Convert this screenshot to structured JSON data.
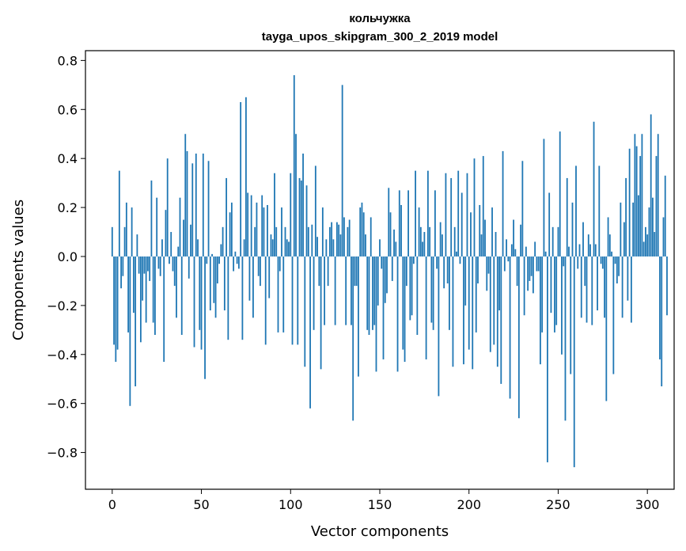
{
  "chart_data": {
    "type": "bar",
    "title": "кольчужка",
    "subtitle": "tayga_upos_skipgram_300_2_2019 model",
    "xlabel": "Vector components",
    "ylabel": "Components values",
    "xlim": [
      -15,
      315
    ],
    "ylim": [
      -0.95,
      0.84
    ],
    "xticks": [
      0,
      50,
      100,
      150,
      200,
      250,
      300
    ],
    "xtick_labels": [
      "0",
      "50",
      "100",
      "150",
      "200",
      "250",
      "300"
    ],
    "yticks": [
      -0.8,
      -0.6,
      -0.4,
      -0.2,
      0.0,
      0.2,
      0.4,
      0.6,
      0.8
    ],
    "ytick_labels": [
      "−0.8",
      "−0.6",
      "−0.4",
      "−0.2",
      "0.0",
      "0.2",
      "0.4",
      "0.6",
      "0.8"
    ],
    "grid": false,
    "bar_color": "#1f77b4",
    "series": [
      {
        "values": [
          0.12,
          -0.36,
          -0.43,
          -0.38,
          0.35,
          -0.13,
          -0.08,
          0.12,
          0.22,
          -0.31,
          -0.61,
          0.2,
          -0.23,
          -0.53,
          0.09,
          -0.07,
          -0.35,
          -0.18,
          -0.07,
          -0.27,
          -0.06,
          -0.1,
          0.31,
          -0.27,
          -0.32,
          0.24,
          -0.05,
          -0.08,
          0.07,
          -0.43,
          0.19,
          0.4,
          -0.03,
          0.1,
          -0.06,
          -0.12,
          -0.25,
          0.04,
          0.24,
          -0.32,
          0.15,
          0.5,
          0.43,
          -0.09,
          0.13,
          0.38,
          -0.37,
          0.42,
          0.07,
          -0.3,
          -0.38,
          0.42,
          -0.5,
          -0.03,
          0.39,
          -0.22,
          0.01,
          -0.19,
          -0.25,
          -0.11,
          -0.03,
          0.05,
          0.12,
          -0.22,
          0.32,
          -0.34,
          0.18,
          0.22,
          -0.06,
          0.02,
          -0.03,
          -0.05,
          0.63,
          -0.34,
          0.07,
          0.65,
          0.26,
          -0.18,
          0.25,
          -0.25,
          0.12,
          0.22,
          -0.08,
          -0.12,
          0.25,
          0.2,
          -0.36,
          0.21,
          -0.17,
          0.09,
          0.07,
          0.34,
          0.12,
          -0.31,
          -0.06,
          0.2,
          -0.31,
          0.12,
          0.07,
          0.06,
          0.34,
          -0.36,
          0.74,
          0.5,
          -0.36,
          0.32,
          0.31,
          0.42,
          -0.45,
          0.29,
          0.12,
          -0.62,
          0.13,
          -0.3,
          0.37,
          0.08,
          -0.12,
          -0.46,
          0.2,
          -0.28,
          0.07,
          -0.12,
          0.12,
          0.14,
          0.07,
          -0.28,
          0.14,
          0.13,
          0.09,
          0.7,
          0.16,
          -0.28,
          0.12,
          0.15,
          -0.28,
          -0.67,
          -0.12,
          -0.12,
          -0.49,
          0.2,
          0.22,
          0.18,
          0.09,
          -0.3,
          -0.32,
          0.16,
          -0.3,
          -0.28,
          -0.47,
          -0.2,
          0.07,
          -0.05,
          -0.42,
          -0.19,
          -0.15,
          0.28,
          0.18,
          -0.1,
          0.11,
          0.06,
          -0.47,
          0.27,
          0.21,
          -0.38,
          -0.43,
          -0.12,
          0.27,
          -0.26,
          -0.24,
          -0.03,
          0.35,
          -0.32,
          0.2,
          0.12,
          0.06,
          0.1,
          -0.42,
          0.35,
          0.12,
          -0.27,
          -0.3,
          0.27,
          -0.05,
          -0.57,
          0.14,
          0.09,
          -0.13,
          0.34,
          -0.11,
          -0.3,
          0.32,
          -0.45,
          0.12,
          0.02,
          0.35,
          -0.03,
          0.26,
          -0.44,
          -0.2,
          0.34,
          -0.38,
          0.18,
          -0.46,
          0.4,
          -0.31,
          -0.11,
          0.21,
          0.09,
          0.41,
          0.15,
          -0.14,
          -0.07,
          -0.39,
          0.2,
          -0.36,
          0.1,
          -0.45,
          -0.22,
          -0.52,
          0.43,
          -0.06,
          0.07,
          -0.02,
          -0.58,
          0.05,
          0.15,
          0.03,
          -0.12,
          -0.66,
          0.13,
          0.39,
          -0.24,
          0.04,
          -0.14,
          -0.1,
          -0.08,
          -0.15,
          0.06,
          -0.06,
          -0.06,
          -0.44,
          -0.31,
          0.48,
          0.02,
          -0.84,
          0.26,
          -0.23,
          0.12,
          -0.31,
          -0.28,
          0.12,
          0.51,
          -0.4,
          -0.04,
          -0.67,
          0.32,
          0.04,
          -0.48,
          0.22,
          -0.86,
          0.37,
          -0.05,
          0.05,
          -0.25,
          0.14,
          -0.12,
          -0.27,
          0.09,
          0.05,
          -0.28,
          0.55,
          0.05,
          -0.22,
          0.37,
          -0.03,
          -0.05,
          -0.25,
          -0.59,
          0.16,
          0.09,
          0.02,
          -0.48,
          -0.03,
          -0.11,
          -0.08,
          0.22,
          -0.25,
          0.14,
          0.32,
          -0.18,
          0.44,
          -0.27,
          0.22,
          0.5,
          0.45,
          0.25,
          0.41,
          0.5,
          0.06,
          0.12,
          0.09,
          0.2,
          0.58,
          0.24,
          0.1,
          0.41,
          0.5,
          -0.42,
          -0.53,
          0.16,
          0.33,
          -0.24
        ]
      }
    ]
  }
}
